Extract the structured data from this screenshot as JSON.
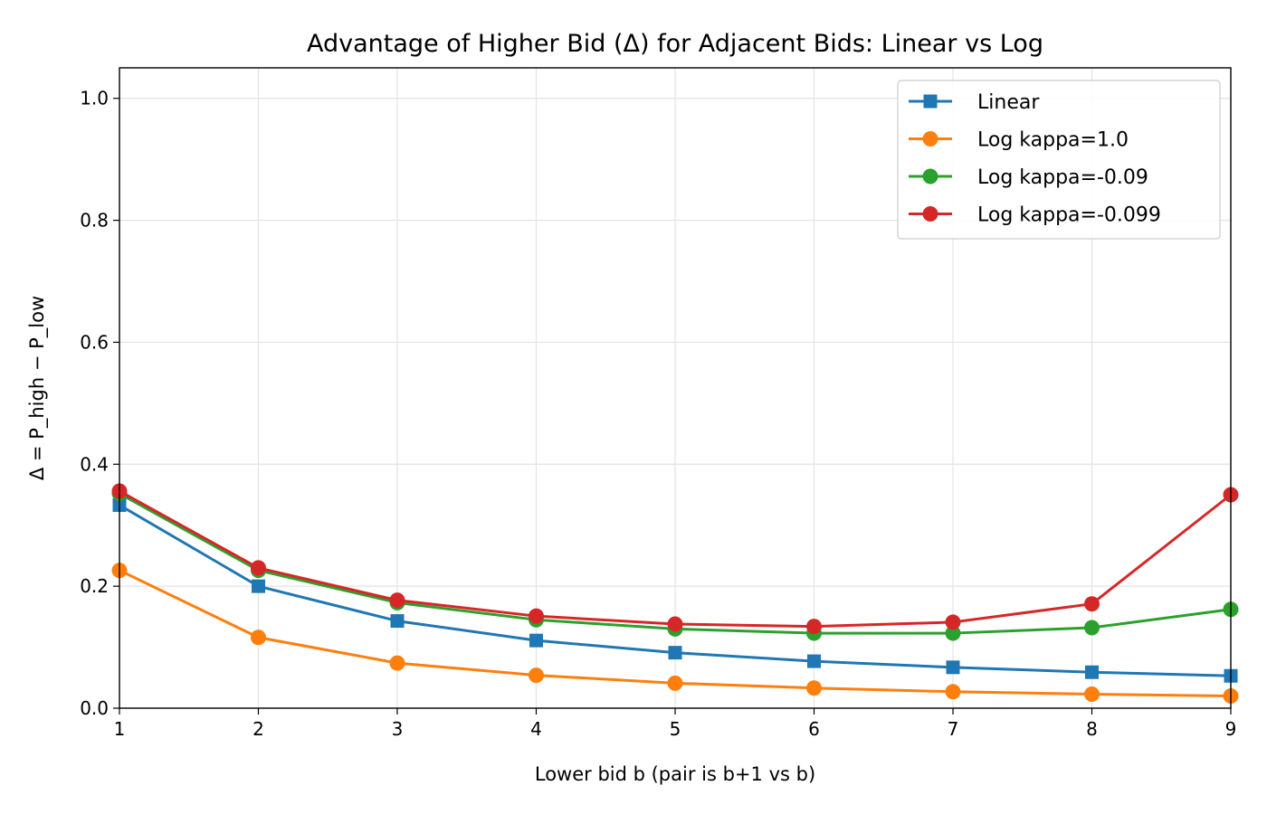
{
  "chart_data": {
    "type": "line",
    "title": "Advantage of Higher Bid (Δ) for Adjacent Bids: Linear vs Log",
    "xlabel": "Lower bid b (pair is b+1 vs b)",
    "ylabel": "Δ = P_high − P_low",
    "x": [
      1,
      2,
      3,
      4,
      5,
      6,
      7,
      8,
      9
    ],
    "xlim": [
      1,
      9
    ],
    "ylim": [
      0,
      1.05
    ],
    "xticks": [
      "1",
      "2",
      "3",
      "4",
      "5",
      "6",
      "7",
      "8",
      "9"
    ],
    "yticks": [
      "0.0",
      "0.2",
      "0.4",
      "0.6",
      "0.8",
      "1.0"
    ],
    "grid": true,
    "legend_position": "top-right",
    "series": [
      {
        "name": "Linear",
        "color": "#1f77b4",
        "marker": "square",
        "values": [
          0.333,
          0.2,
          0.143,
          0.111,
          0.091,
          0.077,
          0.067,
          0.059,
          0.053
        ]
      },
      {
        "name": "Log kappa=1.0",
        "color": "#ff7f0e",
        "marker": "circle",
        "values": [
          0.226,
          0.116,
          0.074,
          0.054,
          0.041,
          0.033,
          0.027,
          0.023,
          0.02
        ]
      },
      {
        "name": "Log kappa=-0.09",
        "color": "#2ca02c",
        "marker": "circle",
        "values": [
          0.352,
          0.226,
          0.173,
          0.145,
          0.13,
          0.123,
          0.123,
          0.132,
          0.162
        ]
      },
      {
        "name": "Log kappa=-0.099",
        "color": "#d62728",
        "marker": "circle",
        "values": [
          0.356,
          0.23,
          0.177,
          0.151,
          0.138,
          0.134,
          0.141,
          0.171,
          0.35
        ]
      }
    ]
  }
}
